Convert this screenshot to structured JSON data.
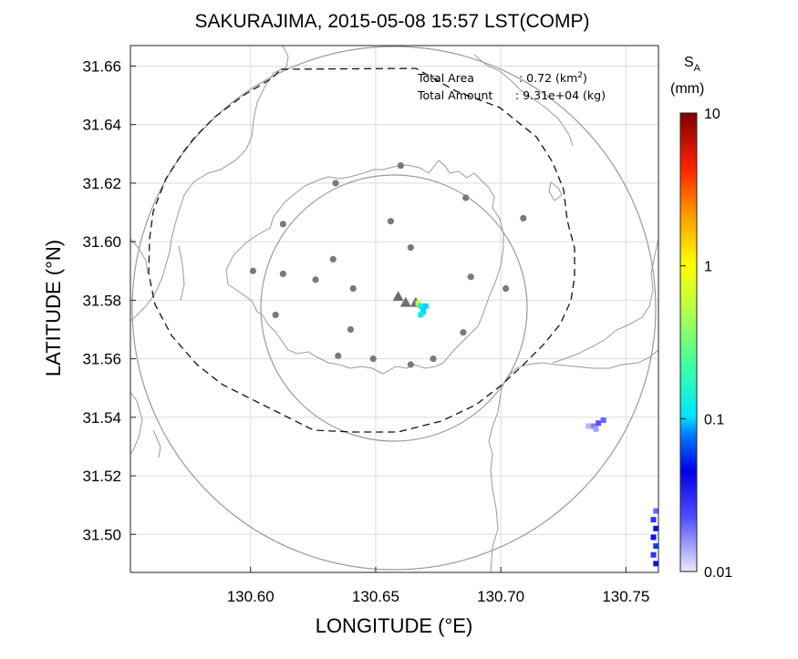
{
  "chart_data": {
    "type": "heatmap",
    "title": "SAKURAJIMA, 2015-05-08 15:57 LST(COMP)",
    "xlabel": "LONGITUDE (°E)",
    "ylabel": "LATITUDE (°N)",
    "xlim": [
      130.552,
      130.763
    ],
    "ylim": [
      31.487,
      31.667
    ],
    "xticks": [
      130.6,
      130.65,
      130.7,
      130.75
    ],
    "xtick_labels": [
      "130.60",
      "130.65",
      "130.70",
      "130.75"
    ],
    "yticks": [
      31.5,
      31.52,
      31.54,
      31.56,
      31.58,
      31.6,
      31.62,
      31.64,
      31.66
    ],
    "ytick_labels": [
      "31.50",
      "31.52",
      "31.54",
      "31.56",
      "31.58",
      "31.60",
      "31.62",
      "31.64",
      "31.66"
    ],
    "grid": true,
    "annotations": {
      "line1_label": "Total Area",
      "line1_value": ": 0.72 (km",
      "line1_sup": "2",
      "line1_close": ")",
      "line2_label": "Total Amount",
      "line2_value": ": 9.31e+04 (kg)"
    },
    "colorbar": {
      "label_main": "S",
      "label_sub": "A",
      "unit": "(mm)",
      "scale": "log",
      "range": [
        0.01,
        10
      ],
      "ticks": [
        0.01,
        0.1,
        1,
        10
      ],
      "tick_labels": [
        "0.01",
        "0.1",
        "1",
        "10"
      ]
    },
    "stations": [
      [
        130.66,
        31.626
      ],
      [
        130.634,
        31.62
      ],
      [
        130.686,
        31.615
      ],
      [
        130.613,
        31.606
      ],
      [
        130.656,
        31.607
      ],
      [
        130.709,
        31.608
      ],
      [
        130.664,
        31.598
      ],
      [
        130.601,
        31.59
      ],
      [
        130.633,
        31.594
      ],
      [
        130.613,
        31.589
      ],
      [
        130.688,
        31.588
      ],
      [
        130.626,
        31.587
      ],
      [
        130.641,
        31.584
      ],
      [
        130.702,
        31.584
      ],
      [
        130.61,
        31.575
      ],
      [
        130.64,
        31.57
      ],
      [
        130.685,
        31.569
      ],
      [
        130.635,
        31.561
      ],
      [
        130.649,
        31.56
      ],
      [
        130.673,
        31.56
      ],
      [
        130.664,
        31.558
      ]
    ],
    "vents": [
      [
        130.659,
        31.581
      ],
      [
        130.662,
        31.579
      ],
      [
        130.666,
        31.579
      ]
    ],
    "ash_cells": [
      {
        "lon": 130.667,
        "lat": 31.579,
        "value": 0.6
      },
      {
        "lon": 130.668,
        "lat": 31.578,
        "value": 0.15
      },
      {
        "lon": 130.669,
        "lat": 31.577,
        "value": 0.12
      },
      {
        "lon": 130.669,
        "lat": 31.576,
        "value": 0.1
      },
      {
        "lon": 130.668,
        "lat": 31.575,
        "value": 0.12
      },
      {
        "lon": 130.67,
        "lat": 31.578,
        "value": 0.1
      },
      {
        "lon": 130.737,
        "lat": 31.537,
        "value": 0.018
      },
      {
        "lon": 130.739,
        "lat": 31.538,
        "value": 0.022
      },
      {
        "lon": 130.741,
        "lat": 31.539,
        "value": 0.02
      },
      {
        "lon": 130.738,
        "lat": 31.536,
        "value": 0.015
      },
      {
        "lon": 130.735,
        "lat": 31.537,
        "value": 0.013
      },
      {
        "lon": 130.761,
        "lat": 31.505,
        "value": 0.03
      },
      {
        "lon": 130.762,
        "lat": 31.502,
        "value": 0.05
      },
      {
        "lon": 130.761,
        "lat": 31.499,
        "value": 0.04
      },
      {
        "lon": 130.762,
        "lat": 31.496,
        "value": 0.06
      },
      {
        "lon": 130.761,
        "lat": 31.493,
        "value": 0.03
      },
      {
        "lon": 130.762,
        "lat": 31.49,
        "value": 0.05
      },
      {
        "lon": 130.762,
        "lat": 31.508,
        "value": 0.02
      }
    ]
  }
}
